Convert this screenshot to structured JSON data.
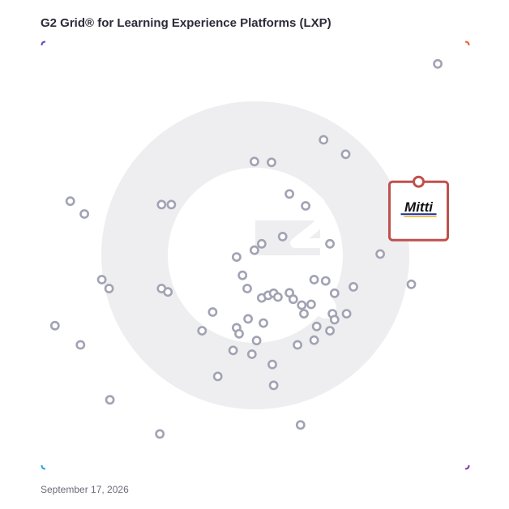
{
  "title": "G2 Grid® for Learning Experience Platforms (LXP)",
  "date": "September 17, 2026",
  "watermark_icon": "g2-logo-icon",
  "colors": {
    "border_top_left": "#5b4fc4",
    "border_top_right": "#e8603a",
    "border_bottom_left": "#2aa6e0",
    "border_bottom_right": "#8c3aa8",
    "marker_stroke": "#a1a3b3",
    "highlight": "#c0504d",
    "watermark": "#eeeef1"
  },
  "chart_data": {
    "type": "scatter",
    "title": "G2 Grid® for Learning Experience Platforms (LXP)",
    "xlabel": "",
    "ylabel": "",
    "xlim": [
      0,
      100
    ],
    "ylim": [
      0,
      100
    ],
    "grid": false,
    "quadrant_divider": {
      "x": 50,
      "y": 50
    },
    "highlighted": {
      "label": "Mitti",
      "x": 88.3,
      "y": 58.7
    },
    "points": [
      [
        92.8,
        94.9
      ],
      [
        66.0,
        77.1
      ],
      [
        71.2,
        73.7
      ],
      [
        49.8,
        72.0
      ],
      [
        53.8,
        71.8
      ],
      [
        90.4,
        65.6
      ],
      [
        58.0,
        64.4
      ],
      [
        61.8,
        61.6
      ],
      [
        6.6,
        62.7
      ],
      [
        9.9,
        59.7
      ],
      [
        28.0,
        61.9
      ],
      [
        30.3,
        61.9
      ],
      [
        56.4,
        54.4
      ],
      [
        51.5,
        52.7
      ],
      [
        67.5,
        52.7
      ],
      [
        49.8,
        51.2
      ],
      [
        45.6,
        49.6
      ],
      [
        79.3,
        50.3
      ],
      [
        47.0,
        45.3
      ],
      [
        14.0,
        44.3
      ],
      [
        15.7,
        42.2
      ],
      [
        28.0,
        42.2
      ],
      [
        29.5,
        41.4
      ],
      [
        48.1,
        42.2
      ],
      [
        63.8,
        44.3
      ],
      [
        66.5,
        44.0
      ],
      [
        73.0,
        42.6
      ],
      [
        68.6,
        41.1
      ],
      [
        51.5,
        40.0
      ],
      [
        53.0,
        40.6
      ],
      [
        54.3,
        41.1
      ],
      [
        58.0,
        41.2
      ],
      [
        55.3,
        40.2
      ],
      [
        58.9,
        39.7
      ],
      [
        60.9,
        38.3
      ],
      [
        63.1,
        38.5
      ],
      [
        86.6,
        43.2
      ],
      [
        61.4,
        36.3
      ],
      [
        68.1,
        36.3
      ],
      [
        71.4,
        36.3
      ],
      [
        68.6,
        34.9
      ],
      [
        40.0,
        36.7
      ],
      [
        48.3,
        35.1
      ],
      [
        51.9,
        34.1
      ],
      [
        3.0,
        33.5
      ],
      [
        37.5,
        32.3
      ],
      [
        45.6,
        33.0
      ],
      [
        46.2,
        31.6
      ],
      [
        64.4,
        33.3
      ],
      [
        67.5,
        32.3
      ],
      [
        63.8,
        30.1
      ],
      [
        59.9,
        29.0
      ],
      [
        50.3,
        30.0
      ],
      [
        44.8,
        27.7
      ],
      [
        49.2,
        26.8
      ],
      [
        9.0,
        29.0
      ],
      [
        54.0,
        24.4
      ],
      [
        41.2,
        21.6
      ],
      [
        54.3,
        19.5
      ],
      [
        15.9,
        16.1
      ],
      [
        60.6,
        10.2
      ],
      [
        27.6,
        8.1
      ]
    ]
  }
}
